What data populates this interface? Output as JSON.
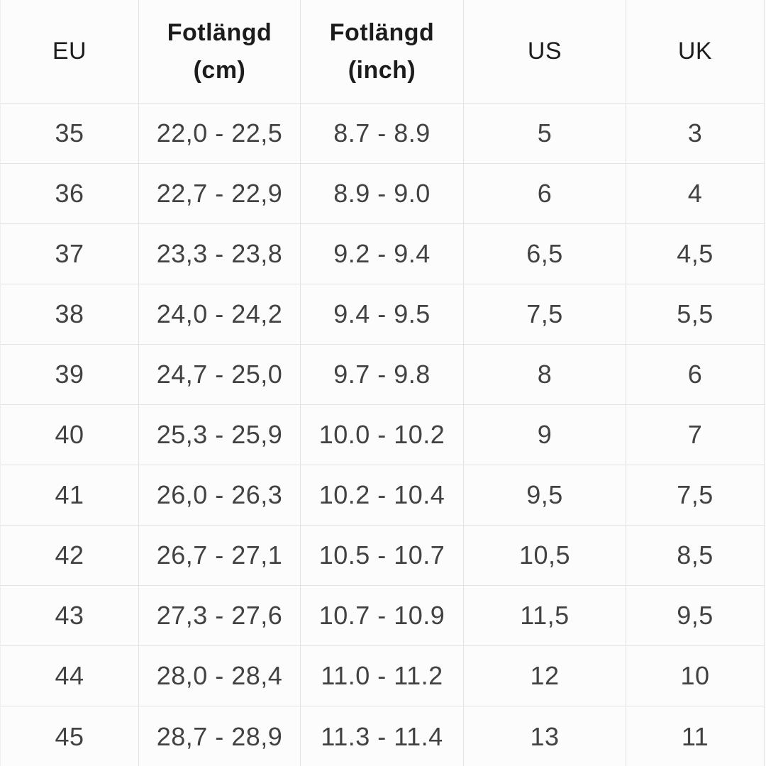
{
  "chart_data": {
    "type": "table",
    "title": "",
    "columns": [
      "EU",
      "Fotlängd (cm)",
      "Fotlängd (inch)",
      "US",
      "UK"
    ],
    "rows": [
      {
        "eu": "35",
        "cm": "22,0 - 22,5",
        "inch": "8.7 - 8.9",
        "us": "5",
        "uk": "3"
      },
      {
        "eu": "36",
        "cm": "22,7 - 22,9",
        "inch": "8.9 - 9.0",
        "us": "6",
        "uk": "4"
      },
      {
        "eu": "37",
        "cm": "23,3 - 23,8",
        "inch": "9.2 - 9.4",
        "us": "6,5",
        "uk": "4,5"
      },
      {
        "eu": "38",
        "cm": "24,0 - 24,2",
        "inch": "9.4 - 9.5",
        "us": "7,5",
        "uk": "5,5"
      },
      {
        "eu": "39",
        "cm": "24,7 - 25,0",
        "inch": "9.7 - 9.8",
        "us": "8",
        "uk": "6"
      },
      {
        "eu": "40",
        "cm": "25,3 - 25,9",
        "inch": "10.0 - 10.2",
        "us": "9",
        "uk": "7"
      },
      {
        "eu": "41",
        "cm": "26,0 - 26,3",
        "inch": "10.2 - 10.4",
        "us": "9,5",
        "uk": "7,5"
      },
      {
        "eu": "42",
        "cm": "26,7 - 27,1",
        "inch": "10.5 - 10.7",
        "us": "10,5",
        "uk": "8,5"
      },
      {
        "eu": "43",
        "cm": "27,3 - 27,6",
        "inch": "10.7 - 10.9",
        "us": "11,5",
        "uk": "9,5"
      },
      {
        "eu": "44",
        "cm": "28,0 - 28,4",
        "inch": "11.0 - 11.2",
        "us": "12",
        "uk": "10"
      },
      {
        "eu": "45",
        "cm": "28,7 - 28,9",
        "inch": "11.3 - 11.4",
        "us": "13",
        "uk": "11"
      }
    ]
  },
  "headers": {
    "eu": "EU",
    "cm_line1": "Fotlängd",
    "cm_line2": "(cm)",
    "inch_line1": "Fotlängd",
    "inch_line2": "(inch)",
    "us": "US",
    "uk": "UK"
  },
  "colors": {
    "background": "#fcfcfc",
    "grid_line": "#e5e1df",
    "text": "#424242",
    "header_text": "#1c1c1c"
  }
}
